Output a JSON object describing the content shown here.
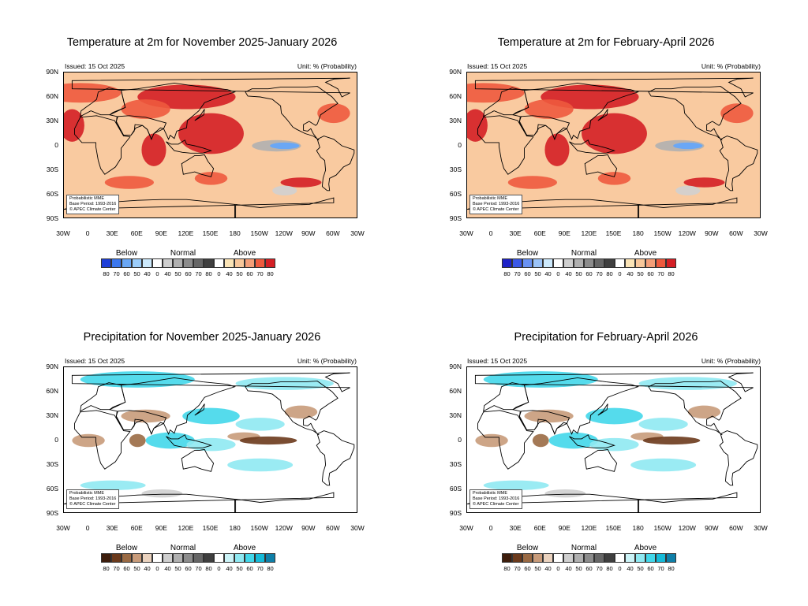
{
  "panels": [
    {
      "id": "temp-nov-jan",
      "title": "Temperature at 2m for November 2025-January 2026",
      "issued": "Issued: 15 Oct 2025",
      "unit": "Unit: % (Probability)",
      "variable": "temperature",
      "info": [
        "Probabilistic MME",
        "Base Period: 1993-2016",
        "© APEC Climate Center"
      ],
      "colorbar": {
        "below_label": "Below",
        "normal_label": "Normal",
        "above_label": "Above",
        "below_colors": [
          "#1e3fd8",
          "#3b77ee",
          "#6aa7f5",
          "#9ccdfa",
          "#cdeafd"
        ],
        "normal_colors": [
          "#ffffff",
          "#cfcfcf",
          "#b0b0b0",
          "#8c8c8c",
          "#666666",
          "#3f3f3f"
        ],
        "above_colors": [
          "#ffffff",
          "#fbe4b6",
          "#f8c79a",
          "#f49e78",
          "#ee5a3e",
          "#d41f25"
        ],
        "below_values": [
          "80",
          "70",
          "60",
          "50",
          "40"
        ],
        "normal_values": [
          "0",
          "40",
          "50",
          "60",
          "70",
          "80"
        ],
        "above_values": [
          "0",
          "40",
          "50",
          "60",
          "70",
          "80"
        ]
      }
    },
    {
      "id": "temp-feb-apr",
      "title": "Temperature at 2m for February-April 2026",
      "issued": "Issued: 15 Oct 2025",
      "unit": "Unit: % (Probability)",
      "variable": "temperature",
      "info": [
        "Probabilistic MME",
        "Base Period: 1993-2016",
        "© APEC Climate Center"
      ],
      "colorbar": {
        "below_label": "Below",
        "normal_label": "Normal",
        "above_label": "Above",
        "below_colors": [
          "#1e22c8",
          "#3b58e6",
          "#6a92f2",
          "#9cc4f8",
          "#cdeafd"
        ],
        "normal_colors": [
          "#ffffff",
          "#cfcfcf",
          "#b0b0b0",
          "#8c8c8c",
          "#666666",
          "#3f3f3f"
        ],
        "above_colors": [
          "#ffffff",
          "#fbe4b6",
          "#f8c79a",
          "#f49e78",
          "#ee5a3e",
          "#d41f25"
        ],
        "below_values": [
          "80",
          "70",
          "60",
          "50",
          "40"
        ],
        "normal_values": [
          "0",
          "40",
          "50",
          "60",
          "70",
          "80"
        ],
        "above_values": [
          "0",
          "40",
          "50",
          "60",
          "70",
          "80"
        ]
      }
    },
    {
      "id": "precip-nov-jan",
      "title": "Precipitation for November 2025-January 2026",
      "issued": "Issued: 15 Oct 2025",
      "unit": "Unit: % (Probability)",
      "variable": "precipitation",
      "info": [
        "Probabilistic MME",
        "Base Period: 1993-2016",
        "© APEC Climate Center"
      ],
      "colorbar": {
        "below_label": "Below",
        "normal_label": "Normal",
        "above_label": "Above",
        "below_colors": [
          "#3d1d0c",
          "#6b3a1c",
          "#9a6a44",
          "#c89b7a",
          "#ead2be"
        ],
        "normal_colors": [
          "#ffffff",
          "#cfcfcf",
          "#b0b0b0",
          "#8c8c8c",
          "#666666",
          "#3f3f3f"
        ],
        "above_colors": [
          "#ffffff",
          "#cbf3f7",
          "#8fe9f2",
          "#42d7ea",
          "#16bad8",
          "#0f7fa8"
        ],
        "below_values": [
          "80",
          "70",
          "60",
          "50",
          "40"
        ],
        "normal_values": [
          "0",
          "40",
          "50",
          "60",
          "70",
          "80"
        ],
        "above_values": [
          "0",
          "40",
          "50",
          "60",
          "70",
          "80"
        ]
      }
    },
    {
      "id": "precip-feb-apr",
      "title": "Precipitation for February-April 2026",
      "issued": "Issued: 15 Oct 2025",
      "unit": "Unit: % (Probability)",
      "variable": "precipitation",
      "info": [
        "Probabilistic MME",
        "Base Period: 1993-2016",
        "© APEC Climate Center"
      ],
      "colorbar": {
        "below_label": "Below",
        "normal_label": "Normal",
        "above_label": "Above",
        "below_colors": [
          "#3d1d0c",
          "#6b3a1c",
          "#9a6a44",
          "#c89b7a",
          "#ead2be"
        ],
        "normal_colors": [
          "#ffffff",
          "#cfcfcf",
          "#b0b0b0",
          "#8c8c8c",
          "#666666",
          "#3f3f3f"
        ],
        "above_colors": [
          "#ffffff",
          "#cbf3f7",
          "#8fe9f2",
          "#42d7ea",
          "#16bad8",
          "#0f7fa8"
        ],
        "below_values": [
          "80",
          "70",
          "60",
          "50",
          "40"
        ],
        "normal_values": [
          "0",
          "40",
          "50",
          "60",
          "70",
          "80"
        ],
        "above_values": [
          "0",
          "40",
          "50",
          "60",
          "70",
          "80"
        ]
      }
    }
  ],
  "lat_labels": [
    "90N",
    "60N",
    "30N",
    "0",
    "30S",
    "60S",
    "90S"
  ],
  "lon_labels": [
    "30W",
    "0",
    "30E",
    "60E",
    "90E",
    "120E",
    "150E",
    "180",
    "150W",
    "120W",
    "90W",
    "60W",
    "30W"
  ],
  "colors": {
    "land_outline": "#000000",
    "temp_base": "#f9caa0",
    "precip_base": "#ffffff"
  }
}
